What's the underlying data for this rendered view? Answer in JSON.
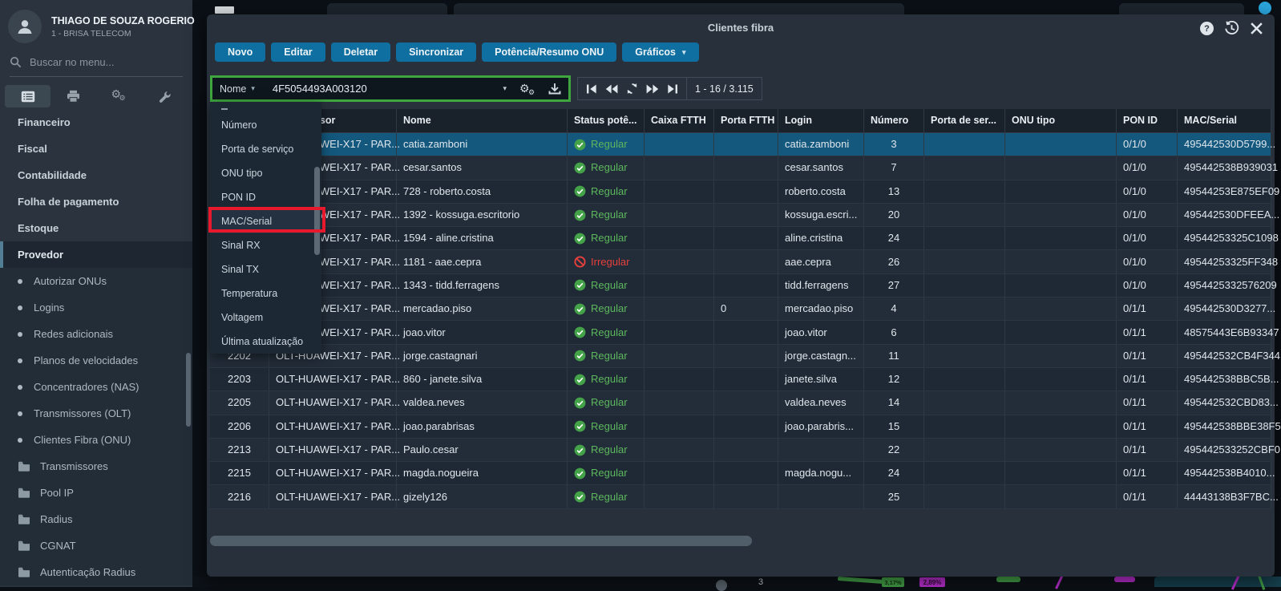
{
  "glyphs": {
    "help": "?",
    "gear": "⚙",
    "caret": "▾"
  },
  "colors": {
    "accent_green": "#3fa53f",
    "annotation_red": "#e8192c",
    "button_blue": "#0f6fa0",
    "status_green": "#44a248",
    "status_red": "#e5403d",
    "row_selected": "#14587e"
  },
  "background": {
    "fragments": {
      "count": "3",
      "green_badge": "3,17%",
      "magenta_badge": "2,89%"
    }
  },
  "sidebar": {
    "user": {
      "name": "THIAGO DE SOUZA ROGERIO",
      "company": "1 - BRISA TELECOM"
    },
    "search": {
      "placeholder": "Buscar no menu..."
    },
    "items": [
      {
        "label": "Financeiro",
        "type": "root"
      },
      {
        "label": "Fiscal",
        "type": "root"
      },
      {
        "label": "Contabilidade",
        "type": "root"
      },
      {
        "label": "Folha de pagamento",
        "type": "root"
      },
      {
        "label": "Estoque",
        "type": "root"
      },
      {
        "label": "Provedor",
        "type": "root",
        "active": true,
        "group": true
      },
      {
        "label": "Autorizar ONUs",
        "type": "sub",
        "group": true
      },
      {
        "label": "Logins",
        "type": "sub",
        "group": true
      },
      {
        "label": "Redes adicionais",
        "type": "sub",
        "group": true
      },
      {
        "label": "Planos de velocidades",
        "type": "sub",
        "group": true
      },
      {
        "label": "Concentradores (NAS)",
        "type": "sub",
        "group": true
      },
      {
        "label": "Transmissores (OLT)",
        "type": "sub",
        "group": true
      },
      {
        "label": "Clientes Fibra (ONU)",
        "type": "sub",
        "group": true
      },
      {
        "label": "Transmissores",
        "type": "folder",
        "group": true
      },
      {
        "label": "Pool IP",
        "type": "folder",
        "group": true
      },
      {
        "label": "Radius",
        "type": "folder",
        "group": true
      },
      {
        "label": "CGNAT",
        "type": "folder",
        "group": true
      },
      {
        "label": "Autenticação Radius",
        "type": "folder",
        "group": true
      }
    ]
  },
  "modal": {
    "title": "Clientes fibra",
    "toolbar": [
      "Novo",
      "Editar",
      "Deletar",
      "Sincronizar",
      "Potência/Resumo ONU",
      "Gráficos"
    ],
    "filter": {
      "field": "Nome",
      "value": "4F5054493A003120"
    },
    "pagination": {
      "count": "1 - 16 / 3.115"
    },
    "dropdown": {
      "items": [
        "Número",
        "Porta de serviço",
        "ONU tipo",
        "PON ID",
        "MAC/Serial",
        "Sinal RX",
        "Sinal TX",
        "Temperatura",
        "Voltagem",
        "Última atualização"
      ],
      "highlighted": "MAC/Serial"
    },
    "table": {
      "columns": [
        "",
        "Transmissor",
        "Nome",
        "Status potê...",
        "Caixa FTTH",
        "Porta FTTH",
        "Login",
        "Número",
        "Porta de ser...",
        "ONU tipo",
        "PON ID",
        "MAC/Serial"
      ],
      "rows": [
        {
          "selected": true,
          "cells": [
            "",
            "OLT-HUAWEI-X17 - PAR...",
            "catia.zamboni",
            "Regular",
            "",
            "",
            "catia.zamboni",
            "3",
            "",
            "",
            "0/1/0",
            "495442530D5799..."
          ]
        },
        {
          "cells": [
            "",
            "OLT-HUAWEI-X17 - PAR...",
            "cesar.santos",
            "Regular",
            "",
            "",
            "cesar.santos",
            "7",
            "",
            "",
            "0/1/0",
            "495442538B939031"
          ]
        },
        {
          "cells": [
            "",
            "OLT-HUAWEI-X17 - PAR...",
            "728 - roberto.costa",
            "Regular",
            "",
            "",
            "roberto.costa",
            "13",
            "",
            "",
            "0/1/0",
            "49544253E875EF09"
          ]
        },
        {
          "cells": [
            "",
            "OLT-HUAWEI-X17 - PAR...",
            "1392 - kossuga.escritorio",
            "Regular",
            "",
            "",
            "kossuga.escri...",
            "20",
            "",
            "",
            "0/1/0",
            "495442530DFEEA..."
          ]
        },
        {
          "cells": [
            "",
            "OLT-HUAWEI-X17 - PAR...",
            "1594 - aline.cristina",
            "Regular",
            "",
            "",
            "aline.cristina",
            "24",
            "",
            "",
            "0/1/0",
            "49544253325C1098"
          ]
        },
        {
          "cells": [
            "",
            "OLT-HUAWEI-X17 - PAR...",
            "1181 - aae.cepra",
            "Irregular",
            "",
            "",
            "aae.cepra",
            "26",
            "",
            "",
            "0/1/0",
            "49544253325FF348"
          ]
        },
        {
          "cells": [
            "",
            "OLT-HUAWEI-X17 - PAR...",
            "1343 - tidd.ferragens",
            "Regular",
            "",
            "",
            "tidd.ferragens",
            "27",
            "",
            "",
            "0/1/0",
            "4954425332576209"
          ]
        },
        {
          "cells": [
            "",
            "OLT-HUAWEI-X17 - PAR...",
            "mercadao.piso",
            "Regular",
            "",
            "0",
            "mercadao.piso",
            "4",
            "",
            "",
            "0/1/1",
            "495442530D3277..."
          ]
        },
        {
          "cells": [
            "",
            "OLT-HUAWEI-X17 - PAR...",
            "joao.vitor",
            "Regular",
            "",
            "",
            "joao.vitor",
            "6",
            "",
            "",
            "0/1/1",
            "48575443E6B93347"
          ]
        },
        {
          "cells": [
            "2202",
            "OLT-HUAWEI-X17 - PAR...",
            "jorge.castagnari",
            "Regular",
            "",
            "",
            "jorge.castagn...",
            "11",
            "",
            "",
            "0/1/1",
            "495442532CB4F344"
          ]
        },
        {
          "cells": [
            "2203",
            "OLT-HUAWEI-X17 - PAR...",
            "860 - janete.silva",
            "Regular",
            "",
            "",
            "janete.silva",
            "12",
            "",
            "",
            "0/1/1",
            "495442538BBC5B..."
          ]
        },
        {
          "cells": [
            "2205",
            "OLT-HUAWEI-X17 - PAR...",
            "valdea.neves",
            "Regular",
            "",
            "",
            "valdea.neves",
            "14",
            "",
            "",
            "0/1/1",
            "495442532CBD83..."
          ]
        },
        {
          "cells": [
            "2206",
            "OLT-HUAWEI-X17 - PAR...",
            "joao.parabrisas",
            "Regular",
            "",
            "",
            "joao.parabris...",
            "15",
            "",
            "",
            "0/1/1",
            "495442538BBE38F5"
          ]
        },
        {
          "cells": [
            "2213",
            "OLT-HUAWEI-X17 - PAR...",
            "Paulo.cesar",
            "Regular",
            "",
            "",
            "",
            "22",
            "",
            "",
            "0/1/1",
            "495442533252CBF0"
          ]
        },
        {
          "cells": [
            "2215",
            "OLT-HUAWEI-X17 - PAR...",
            "magda.nogueira",
            "Regular",
            "",
            "",
            "magda.nogu...",
            "24",
            "",
            "",
            "0/1/1",
            "495442538B4010..."
          ]
        },
        {
          "cells": [
            "2216",
            "OLT-HUAWEI-X17 - PAR...",
            "gizely126",
            "Regular",
            "",
            "",
            "",
            "25",
            "",
            "",
            "0/1/1",
            "44443138B3F7BC..."
          ]
        }
      ]
    }
  }
}
